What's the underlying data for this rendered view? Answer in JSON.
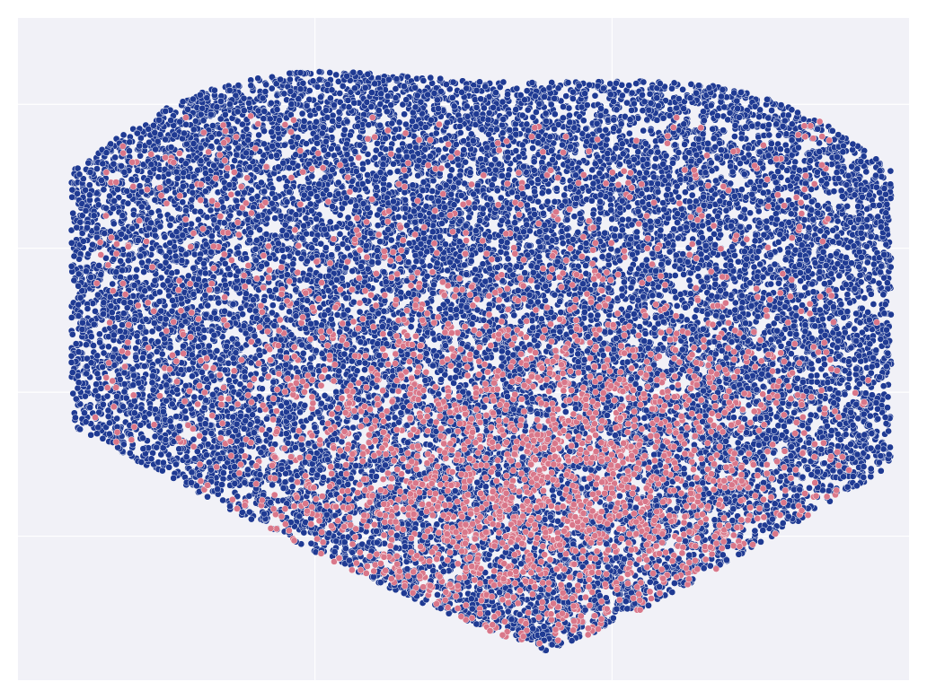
{
  "chart_data": {
    "type": "scatter",
    "title": "",
    "xlabel": "",
    "ylabel": "",
    "grid": true,
    "legend": "none",
    "x_gridlines": [
      -50,
      0
    ],
    "y_gridlines": [
      50,
      25,
      0,
      -25
    ],
    "xlim": [
      -100,
      50
    ],
    "ylim": [
      -50,
      65
    ],
    "series": [
      {
        "color": "#1f3a93",
        "n_points": 17000,
        "extent": {
          "x": [
            -91,
            47
          ],
          "y": [
            -45,
            60
          ]
        }
      },
      {
        "color": "#d9778a",
        "n_points": 2600,
        "extent": {
          "x": [
            -87,
            38
          ],
          "y": [
            -42,
            48
          ]
        },
        "densest_region": {
          "x": [
            -35,
            10
          ],
          "y": [
            -35,
            0
          ]
        }
      }
    ]
  },
  "colors": {
    "plot_background": "#f1f1f7",
    "gridline": "#ffffff",
    "point_edge": "#ffffff"
  }
}
